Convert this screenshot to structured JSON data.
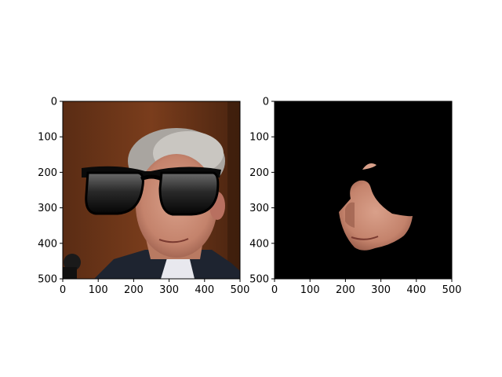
{
  "chart_data": [
    {
      "type": "image",
      "title": "",
      "xlabel": "",
      "ylabel": "",
      "xlim": [
        0,
        500
      ],
      "ylim": [
        500,
        0
      ],
      "xticks": [
        0,
        100,
        200,
        300,
        400,
        500
      ],
      "yticks": [
        0,
        100,
        200,
        300,
        400,
        500
      ],
      "grid": false,
      "content": "photo of a man's face with black sunglasses overlaid"
    },
    {
      "type": "image",
      "title": "",
      "xlabel": "",
      "ylabel": "",
      "xlim": [
        0,
        500
      ],
      "ylim": [
        500,
        0
      ],
      "xticks": [
        0,
        100,
        200,
        300,
        400,
        500
      ],
      "yticks": [
        0,
        100,
        200,
        300,
        400,
        500
      ],
      "grid": false,
      "content": "face mask on black background",
      "background_color": "#000000"
    }
  ]
}
